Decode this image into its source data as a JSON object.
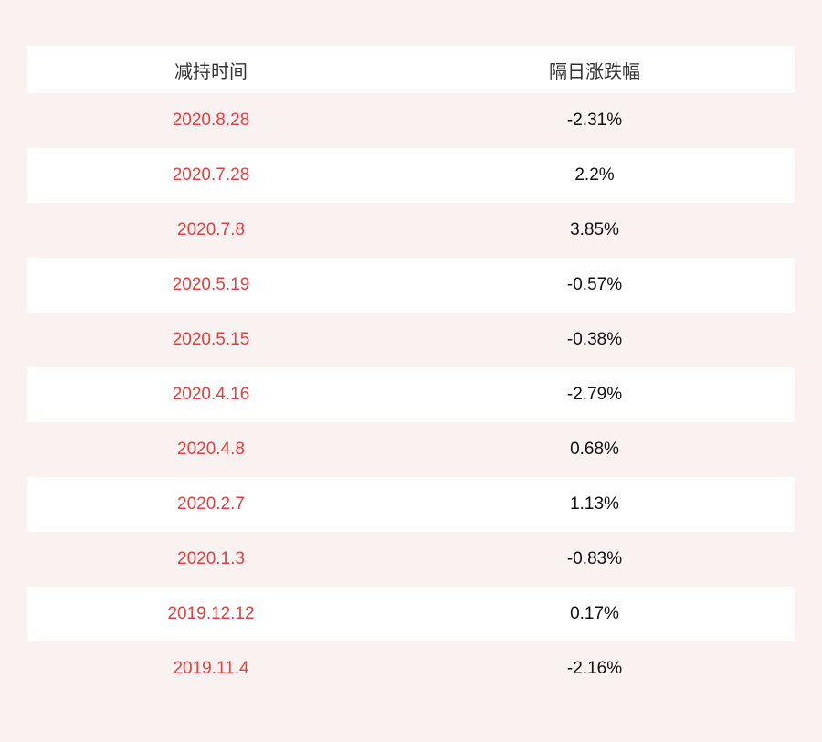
{
  "page": {
    "background": "#f9f2f1"
  },
  "colors": {
    "date_text": "#dc4241",
    "header_text": "#333333",
    "value_text": "#111111",
    "row_white": "#ffffff",
    "row_pink": "#f9f2f1"
  },
  "chart_data": {
    "type": "table",
    "columns": [
      "减持时间",
      "隔日涨跌幅"
    ],
    "rows": [
      [
        "2020.8.28",
        "-2.31%"
      ],
      [
        "2020.7.28",
        "2.2%"
      ],
      [
        "2020.7.8",
        "3.85%"
      ],
      [
        "2020.5.19",
        "-0.57%"
      ],
      [
        "2020.5.15",
        "-0.38%"
      ],
      [
        "2020.4.16",
        "-2.79%"
      ],
      [
        "2020.4.8",
        "0.68%"
      ],
      [
        "2020.2.7",
        "1.13%"
      ],
      [
        "2020.1.3",
        "-0.83%"
      ],
      [
        "2019.12.12",
        "0.17%"
      ],
      [
        "2019.11.4",
        "-2.16%"
      ]
    ],
    "layout": {
      "zebra_striping": true,
      "header_background": "#ffffff",
      "grid": false
    }
  }
}
